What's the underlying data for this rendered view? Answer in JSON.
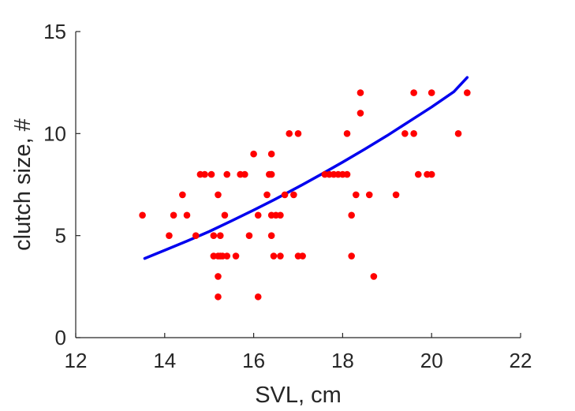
{
  "chart_data": {
    "type": "scatter",
    "xlabel": "SVL, cm",
    "ylabel": "clutch size, #",
    "xlim": [
      12,
      22
    ],
    "ylim": [
      0,
      15
    ],
    "xticks": [
      12,
      14,
      16,
      18,
      20,
      22
    ],
    "yticks": [
      0,
      5,
      10,
      15
    ],
    "grid": false,
    "colors": {
      "points": "#ff0000",
      "fit_line": "#0000ee",
      "axis": "#262626"
    },
    "series": [
      {
        "kind": "points",
        "x": [
          13.5,
          14.1,
          14.2,
          14.4,
          14.5,
          14.7,
          14.8,
          14.9,
          15.05,
          15.1,
          15.1,
          15.2,
          15.2,
          15.2,
          15.2,
          15.25,
          15.25,
          15.3,
          15.35,
          15.4,
          15.4,
          15.6,
          15.7,
          15.8,
          15.9,
          16.0,
          16.1,
          16.1,
          16.3,
          16.35,
          16.4,
          16.4,
          16.4,
          16.4,
          16.45,
          16.5,
          16.6,
          16.6,
          16.7,
          16.8,
          16.9,
          17.0,
          17.0,
          17.1,
          17.6,
          17.7,
          17.8,
          17.9,
          18.0,
          18.1,
          18.1,
          18.2,
          18.2,
          18.3,
          18.4,
          18.4,
          18.6,
          18.7,
          19.2,
          19.4,
          19.6,
          19.6,
          19.7,
          19.9,
          20.0,
          20.0,
          20.6,
          20.8
        ],
        "y": [
          6,
          5,
          6,
          7,
          6,
          5,
          8,
          8,
          8,
          5,
          4,
          4,
          7,
          3,
          2,
          5,
          4,
          4,
          6,
          8,
          4,
          4,
          8,
          8,
          5,
          9,
          6,
          2,
          7,
          8,
          9,
          8,
          6,
          5,
          4,
          6,
          6,
          4,
          7,
          10,
          7,
          10,
          4,
          4,
          8,
          8,
          8,
          8,
          8,
          8,
          10,
          6,
          4,
          7,
          12,
          11,
          7,
          3,
          7,
          10,
          12,
          10,
          8,
          8,
          12,
          8,
          10,
          12
        ]
      },
      {
        "kind": "fit",
        "x": [
          13.55,
          14.0,
          14.5,
          15.0,
          15.5,
          16.0,
          16.5,
          17.0,
          17.5,
          18.0,
          18.5,
          19.0,
          19.5,
          20.0,
          20.5,
          20.8
        ],
        "y": [
          3.88,
          4.28,
          4.73,
          5.2,
          5.72,
          6.25,
          6.8,
          7.38,
          7.98,
          8.6,
          9.24,
          9.9,
          10.6,
          11.3,
          12.05,
          12.75
        ]
      }
    ]
  }
}
